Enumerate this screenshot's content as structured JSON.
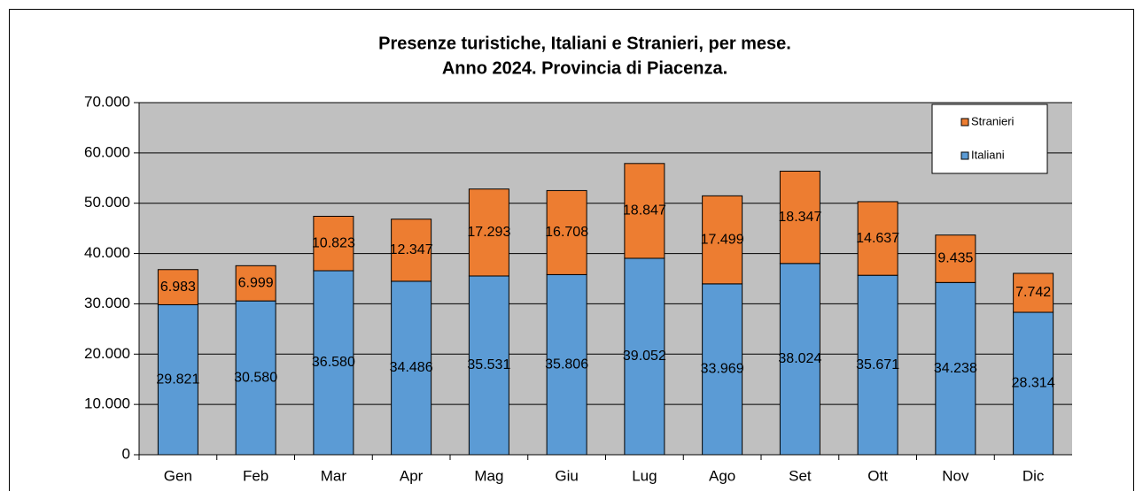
{
  "chart_data": {
    "type": "stacked_bar",
    "title": "Presenze turistiche, Italiani e Stranieri, per mese.",
    "subtitle": "Anno 2024. Provincia di Piacenza.",
    "categories": [
      "Gen",
      "Feb",
      "Mar",
      "Apr",
      "Mag",
      "Giu",
      "Lug",
      "Ago",
      "Set",
      "Ott",
      "Nov",
      "Dic"
    ],
    "series": [
      {
        "name": "Italiani",
        "color": "#5b9bd5",
        "values": [
          29821,
          30580,
          36580,
          34486,
          35531,
          35806,
          39052,
          33969,
          38024,
          35671,
          34238,
          28314
        ],
        "value_labels": [
          "29.821",
          "30.580",
          "36.580",
          "34.486",
          "35.531",
          "35.806",
          "39.052",
          "33.969",
          "38.024",
          "35.671",
          "34.238",
          "28.314"
        ]
      },
      {
        "name": "Stranieri",
        "color": "#ed7d31",
        "values": [
          6983,
          6999,
          10823,
          12347,
          17293,
          16708,
          18847,
          17499,
          18347,
          14637,
          9435,
          7742
        ],
        "value_labels": [
          "6.983",
          "6.999",
          "10.823",
          "12.347",
          "17.293",
          "16.708",
          "18.847",
          "17.499",
          "18.347",
          "14.637",
          "9.435",
          "7.742"
        ]
      }
    ],
    "ylim": [
      0,
      70000
    ],
    "yticks": [
      0,
      {
        "value": 10000,
        "label": "10.000"
      },
      {
        "value": 20000,
        "label": "20.000"
      },
      {
        "value": 30000,
        "label": "30.000"
      },
      {
        "value": 40000,
        "label": "40.000"
      },
      {
        "value": 50000,
        "label": "50.000"
      },
      {
        "value": 60000,
        "label": "60.000"
      },
      {
        "value": 70000,
        "label": "70.000"
      }
    ],
    "grid": true,
    "legend": "top-right"
  }
}
